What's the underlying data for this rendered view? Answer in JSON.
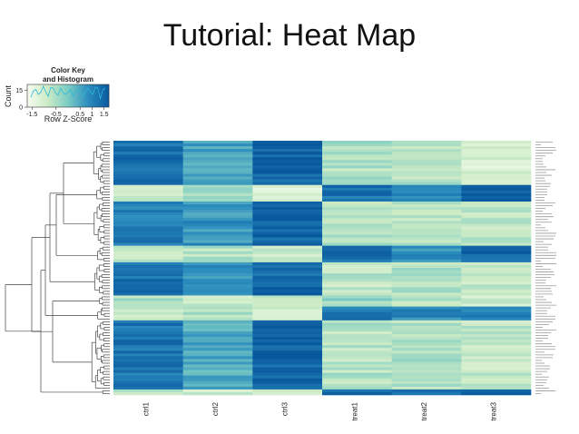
{
  "slide": {
    "title": "Tutorial: Heat Map"
  },
  "colors": {
    "low": "#f7fcf0",
    "mid_low": "#ccebc5",
    "mid": "#7bccc4",
    "mid_high": "#2b8cbe",
    "high": "#08589e"
  },
  "chart_data": {
    "type": "heatmap",
    "title": "",
    "columns": [
      "ctrl1",
      "ctrl2",
      "ctrl3",
      "treat1",
      "treat2",
      "treat3"
    ],
    "n_rows": 92,
    "row_dendrogram": true,
    "row_labels_legible": false,
    "value_scale": "Row Z-Score",
    "zlim": [
      -1.7,
      1.7
    ],
    "row_blocks": [
      {
        "rows": 16,
        "values": [
          1.25,
          0.55,
          1.55,
          -0.55,
          -0.65,
          -1.05
        ]
      },
      {
        "rows": 6,
        "values": [
          -0.75,
          -0.5,
          -1.1,
          1.3,
          0.9,
          1.45
        ]
      },
      {
        "rows": 16,
        "values": [
          1.05,
          0.75,
          1.5,
          -0.65,
          -0.6,
          -0.75
        ]
      },
      {
        "rows": 6,
        "values": [
          -0.8,
          -0.6,
          -0.9,
          1.25,
          0.85,
          1.45
        ]
      },
      {
        "rows": 12,
        "values": [
          1.2,
          0.75,
          1.45,
          -0.7,
          -0.5,
          -0.85
        ]
      },
      {
        "rows": 4,
        "values": [
          -0.55,
          -0.85,
          -1.0,
          -0.3,
          -0.6,
          -0.9
        ]
      },
      {
        "rows": 5,
        "values": [
          -0.7,
          -0.55,
          -0.9,
          1.2,
          0.95,
          1.1
        ]
      },
      {
        "rows": 25,
        "values": [
          1.2,
          0.45,
          1.55,
          -0.6,
          -0.55,
          -0.75
        ]
      },
      {
        "rows": 2,
        "values": [
          -0.7,
          -0.9,
          -0.9,
          1.3,
          1.1,
          1.4
        ]
      }
    ],
    "color_key": {
      "title_line1": "Color Key",
      "title_line2": "and Histogram",
      "xlabel": "Row Z-Score",
      "ylabel": "Count",
      "x_ticks": [
        "-1.5",
        "-0.5",
        "0.5",
        "1",
        "1.5"
      ],
      "x_tick_values": [
        -1.5,
        -0.5,
        0.5,
        1,
        1.5
      ],
      "y_ticks": [
        "0",
        "15"
      ],
      "y_tick_values": [
        0,
        15
      ]
    }
  }
}
